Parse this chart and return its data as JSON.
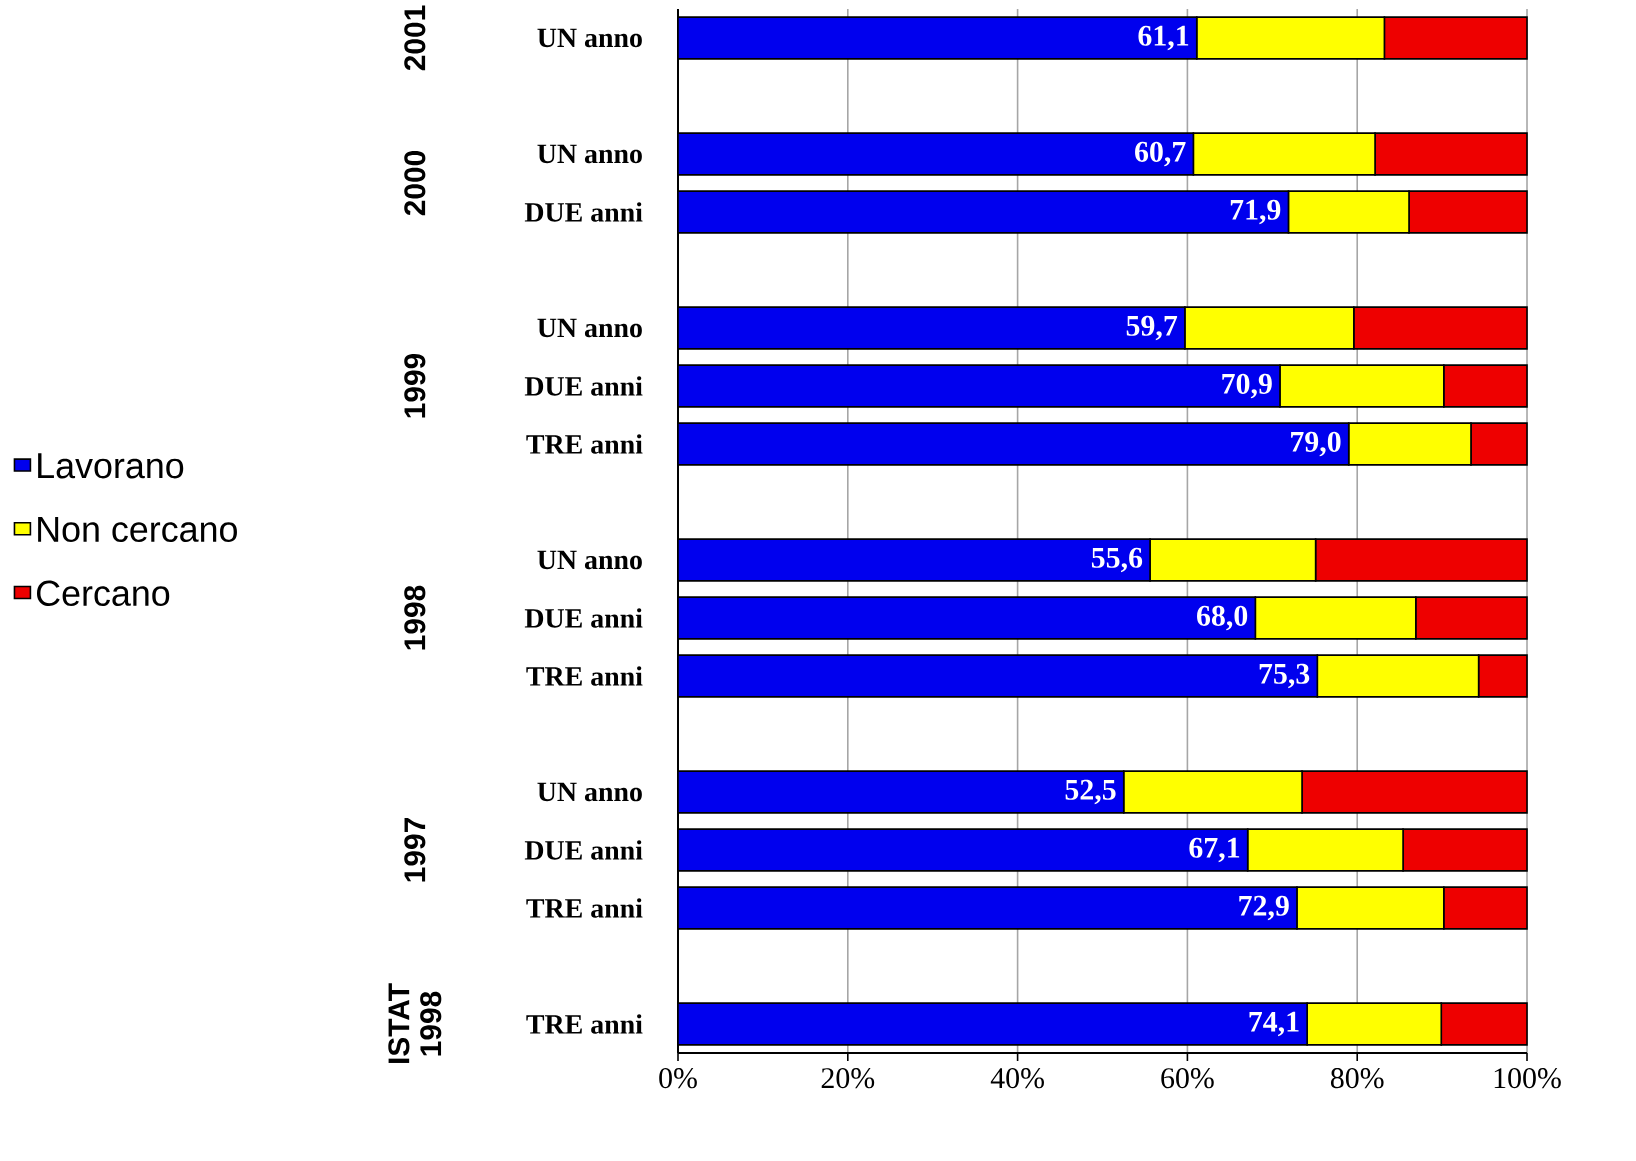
{
  "chart_data": {
    "type": "bar",
    "orientation": "horizontal",
    "stacked": true,
    "categories": [
      "UN anno",
      null,
      "UN anno",
      "DUE anni",
      null,
      "UN anno",
      "DUE anni",
      "TRE anni",
      null,
      "UN anno",
      "DUE anni",
      "TRE anni",
      null,
      "UN anno",
      "DUE anni",
      "TRE anni",
      null,
      "TRE anni"
    ],
    "series": [
      {
        "name": "Lavorano",
        "color": "#0000ee",
        "values": [
          61.1,
          null,
          60.7,
          71.9,
          null,
          59.7,
          70.9,
          79.0,
          null,
          55.6,
          68.0,
          75.3,
          null,
          52.5,
          67.1,
          72.9,
          null,
          74.1
        ],
        "value_labels": [
          "61,1",
          null,
          "60,7",
          "71,9",
          null,
          "59,7",
          "70,9",
          "79,0",
          null,
          "55,6",
          "68,0",
          "75,3",
          null,
          "52,5",
          "67,1",
          "72,9",
          null,
          "74,1"
        ]
      },
      {
        "name": "Non cercano",
        "color": "#ffff00",
        "values": [
          22.1,
          null,
          21.4,
          14.2,
          null,
          19.9,
          19.3,
          14.4,
          null,
          19.5,
          18.9,
          19.0,
          null,
          21.0,
          18.3,
          17.3,
          null,
          15.8
        ]
      },
      {
        "name": "Cercano",
        "color": "#ee0000",
        "values": [
          16.8,
          null,
          17.9,
          13.9,
          null,
          20.4,
          9.8,
          6.6,
          null,
          24.9,
          13.1,
          5.7,
          null,
          26.5,
          14.6,
          9.8,
          null,
          10.1
        ]
      }
    ],
    "xlim": [
      0,
      100
    ],
    "xticks": [
      {
        "value": 0,
        "label": "0%"
      },
      {
        "value": 20,
        "label": "20%"
      },
      {
        "value": 40,
        "label": "40%"
      },
      {
        "value": 60,
        "label": "60%"
      },
      {
        "value": 80,
        "label": "80%"
      },
      {
        "value": 100,
        "label": "100%"
      }
    ],
    "grid": "x",
    "legend": "left",
    "annotations": [
      "2001",
      "2000",
      "1999",
      "1998",
      "1997",
      "ISTAT 1998"
    ]
  }
}
